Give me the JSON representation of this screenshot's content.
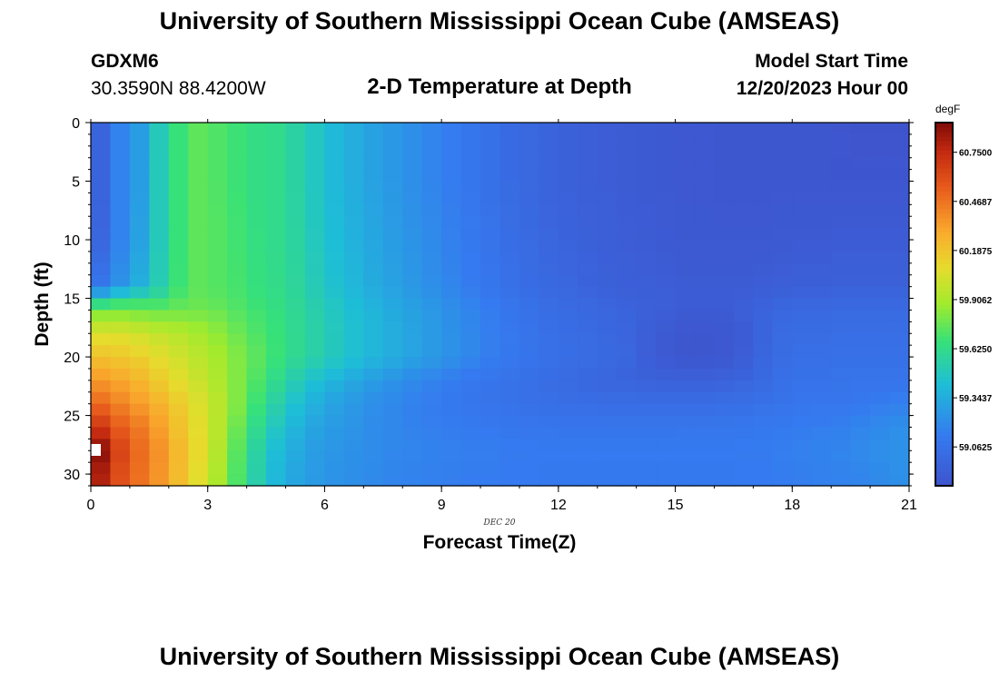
{
  "header": {
    "title": "University of Southern Mississippi Ocean Cube (AMSEAS)",
    "footer_title": "University of Southern Mississippi Ocean Cube (AMSEAS)",
    "station": "GDXM6",
    "location": "30.3590N  88.4200W",
    "plot_title": "2-D Temperature at Depth",
    "model_start_label": "Model Start Time",
    "model_start_value": "12/20/2023 Hour 00"
  },
  "chart_data": {
    "type": "heatmap",
    "title": "2-D Temperature at Depth",
    "xlabel": "Forecast Time(Z)",
    "ylabel": "Depth (ft)",
    "date_label": "DEC 20",
    "xlim": [
      0,
      21
    ],
    "ylim": [
      0,
      31
    ],
    "x_ticks": [
      "0",
      "3",
      "6",
      "9",
      "12",
      "15",
      "18",
      "21"
    ],
    "y_ticks": [
      "0",
      "5",
      "10",
      "15",
      "20",
      "25",
      "30"
    ],
    "colorbar": {
      "unit": "degF",
      "min": 58.84,
      "max": 60.92,
      "tick_values": [
        60.75,
        60.46875,
        60.1875,
        59.90625,
        59.625,
        59.34375,
        59.0625
      ],
      "tick_labels": [
        "60.7500",
        "60.4687",
        "60.1875",
        "59.9062",
        "59.6250",
        "59.3437",
        "59.0625"
      ]
    },
    "time_hours": [
      0,
      0.5,
      1,
      1.5,
      2,
      2.5,
      3,
      3.5,
      4,
      4.5,
      5,
      5.5,
      6,
      6.5,
      7,
      7.5,
      8,
      8.5,
      9,
      9.5,
      10,
      10.5,
      11,
      11.5,
      12,
      12.5,
      13,
      13.5,
      14,
      14.5,
      15,
      15.5,
      16,
      16.5,
      17,
      17.5,
      18,
      18.5,
      19,
      19.5,
      20,
      20.5,
      21
    ],
    "depth_rows_ft": [
      0,
      5,
      10,
      14,
      15,
      16,
      18,
      20,
      22,
      24,
      26,
      28,
      30
    ],
    "temperature_degF": [
      [
        58.96,
        59.17,
        59.28,
        59.5,
        59.67,
        59.75,
        59.72,
        59.68,
        59.64,
        59.62,
        59.56,
        59.48,
        59.4,
        59.35,
        59.3,
        59.26,
        59.22,
        59.18,
        59.14,
        59.1,
        59.06,
        59.02,
        58.99,
        58.96,
        58.94,
        58.92,
        58.91,
        58.9,
        58.89,
        58.88,
        58.87,
        58.87,
        58.86,
        58.86,
        58.86,
        58.86,
        58.86,
        58.86,
        58.85,
        58.84,
        58.84,
        58.84,
        58.84
      ],
      [
        58.96,
        59.17,
        59.28,
        59.5,
        59.67,
        59.75,
        59.72,
        59.68,
        59.64,
        59.62,
        59.56,
        59.48,
        59.4,
        59.35,
        59.3,
        59.26,
        59.22,
        59.18,
        59.14,
        59.1,
        59.06,
        59.02,
        58.99,
        58.96,
        58.94,
        58.92,
        58.91,
        58.9,
        58.89,
        58.88,
        58.87,
        58.87,
        58.86,
        58.86,
        58.86,
        58.86,
        58.86,
        58.86,
        58.86,
        58.86,
        58.86,
        58.86,
        58.86
      ],
      [
        58.98,
        59.17,
        59.3,
        59.5,
        59.67,
        59.75,
        59.73,
        59.69,
        59.65,
        59.62,
        59.57,
        59.49,
        59.42,
        59.37,
        59.32,
        59.28,
        59.24,
        59.2,
        59.16,
        59.12,
        59.08,
        59.04,
        59.01,
        58.98,
        58.96,
        58.94,
        58.92,
        58.91,
        58.9,
        58.89,
        58.88,
        58.88,
        58.88,
        58.88,
        58.88,
        58.89,
        58.89,
        58.89,
        58.9,
        58.9,
        58.9,
        58.9,
        58.9
      ],
      [
        59.1,
        59.24,
        59.36,
        59.52,
        59.68,
        59.75,
        59.73,
        59.7,
        59.66,
        59.63,
        59.58,
        59.51,
        59.44,
        59.39,
        59.34,
        59.3,
        59.26,
        59.22,
        59.18,
        59.14,
        59.1,
        59.06,
        59.03,
        59.0,
        58.98,
        58.96,
        58.94,
        58.93,
        58.92,
        58.91,
        58.9,
        58.9,
        58.9,
        58.9,
        58.91,
        58.92,
        58.93,
        58.93,
        58.94,
        58.94,
        58.94,
        58.94,
        58.94
      ],
      [
        59.48,
        59.58,
        59.62,
        59.64,
        59.72,
        59.76,
        59.74,
        59.71,
        59.67,
        59.64,
        59.59,
        59.52,
        59.46,
        59.41,
        59.36,
        59.32,
        59.28,
        59.24,
        59.2,
        59.16,
        59.12,
        59.08,
        59.05,
        59.02,
        59.0,
        58.98,
        58.96,
        58.94,
        58.93,
        58.92,
        58.91,
        58.91,
        58.91,
        58.92,
        58.94,
        58.96,
        58.97,
        58.97,
        58.98,
        58.98,
        58.98,
        58.98,
        58.98
      ],
      [
        59.8,
        59.8,
        59.78,
        59.77,
        59.78,
        59.79,
        59.77,
        59.73,
        59.69,
        59.65,
        59.6,
        59.54,
        59.48,
        59.43,
        59.38,
        59.34,
        59.3,
        59.26,
        59.22,
        59.18,
        59.14,
        59.1,
        59.07,
        59.04,
        59.02,
        59.0,
        58.98,
        58.96,
        58.94,
        58.92,
        58.9,
        58.9,
        58.9,
        58.92,
        58.96,
        58.99,
        59.0,
        59.0,
        59.01,
        59.01,
        59.01,
        59.01,
        59.01
      ],
      [
        60.05,
        60.05,
        60.02,
        59.98,
        59.95,
        59.9,
        59.85,
        59.78,
        59.72,
        59.67,
        59.61,
        59.55,
        59.49,
        59.44,
        59.39,
        59.35,
        59.31,
        59.27,
        59.23,
        59.19,
        59.15,
        59.11,
        59.08,
        59.05,
        59.03,
        59.01,
        58.99,
        58.97,
        58.92,
        58.89,
        58.86,
        58.86,
        58.87,
        58.9,
        58.96,
        59.01,
        59.03,
        59.03,
        59.04,
        59.04,
        59.04,
        59.04,
        59.04
      ],
      [
        60.2,
        60.18,
        60.14,
        60.08,
        60.02,
        59.96,
        59.9,
        59.82,
        59.75,
        59.68,
        59.61,
        59.55,
        59.49,
        59.44,
        59.39,
        59.35,
        59.31,
        59.27,
        59.23,
        59.19,
        59.15,
        59.12,
        59.09,
        59.06,
        59.04,
        59.02,
        59.0,
        58.98,
        58.92,
        58.88,
        58.86,
        58.86,
        58.87,
        58.91,
        58.98,
        59.03,
        59.05,
        59.05,
        59.06,
        59.06,
        59.06,
        59.06,
        59.06
      ],
      [
        60.35,
        60.3,
        60.24,
        60.16,
        60.08,
        60.0,
        59.92,
        59.82,
        59.72,
        59.62,
        59.52,
        59.44,
        59.38,
        59.33,
        59.28,
        59.24,
        59.2,
        59.17,
        59.14,
        59.11,
        59.09,
        59.07,
        59.05,
        59.03,
        59.01,
        58.99,
        58.97,
        58.96,
        58.95,
        58.94,
        58.94,
        58.94,
        58.95,
        58.97,
        59.01,
        59.05,
        59.07,
        59.07,
        59.08,
        59.08,
        59.08,
        59.08,
        59.08
      ],
      [
        60.5,
        60.42,
        60.34,
        60.26,
        60.16,
        60.06,
        59.96,
        59.82,
        59.68,
        59.55,
        59.44,
        59.36,
        59.3,
        59.26,
        59.22,
        59.19,
        59.16,
        59.14,
        59.12,
        59.1,
        59.08,
        59.07,
        59.06,
        59.05,
        59.04,
        59.04,
        59.03,
        59.03,
        59.03,
        59.03,
        59.03,
        59.03,
        59.04,
        59.05,
        59.06,
        59.08,
        59.1,
        59.1,
        59.1,
        59.12,
        59.14,
        59.16,
        59.18
      ],
      [
        60.7,
        60.55,
        60.45,
        60.33,
        60.2,
        60.08,
        59.95,
        59.78,
        59.62,
        59.48,
        59.38,
        59.31,
        59.27,
        59.24,
        59.21,
        59.19,
        59.17,
        59.15,
        59.14,
        59.13,
        59.12,
        59.11,
        59.1,
        59.1,
        59.09,
        59.09,
        59.09,
        59.09,
        59.09,
        59.09,
        59.1,
        59.1,
        59.1,
        59.11,
        59.12,
        59.13,
        59.14,
        59.15,
        59.16,
        59.18,
        59.2,
        59.22,
        59.24
      ],
      [
        60.9,
        60.65,
        60.5,
        60.38,
        60.24,
        60.1,
        59.94,
        59.74,
        59.56,
        59.42,
        59.34,
        59.28,
        59.25,
        59.23,
        59.21,
        59.19,
        59.18,
        59.17,
        59.16,
        59.15,
        59.15,
        59.14,
        59.14,
        59.13,
        59.13,
        59.13,
        59.13,
        59.13,
        59.13,
        59.13,
        59.13,
        59.13,
        59.13,
        59.14,
        59.14,
        59.15,
        59.16,
        59.17,
        59.18,
        59.2,
        59.22,
        59.24,
        59.26
      ],
      [
        60.8,
        60.6,
        60.48,
        60.36,
        60.22,
        60.08,
        59.92,
        59.72,
        59.54,
        59.4,
        59.32,
        59.27,
        59.24,
        59.22,
        59.2,
        59.18,
        59.17,
        59.16,
        59.15,
        59.14,
        59.14,
        59.13,
        59.13,
        59.12,
        59.12,
        59.12,
        59.12,
        59.12,
        59.12,
        59.12,
        59.12,
        59.12,
        59.12,
        59.13,
        59.13,
        59.14,
        59.15,
        59.16,
        59.17,
        59.18,
        59.2,
        59.22,
        59.24
      ]
    ]
  }
}
